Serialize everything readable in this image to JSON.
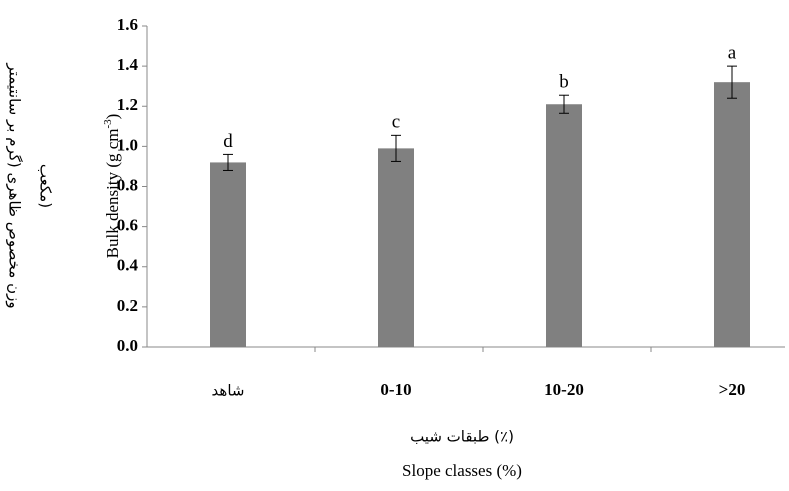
{
  "chart_data": {
    "type": "bar",
    "y_label": {
      "text": "Bulk density (g cm",
      "sup": "-3",
      "end": ")"
    },
    "y_label_fa": [
      "وزن مخصوص ظاهری (گرم بر سانتیمتر",
      "مکعب)"
    ],
    "x_label_fa": "طبقات شیب (٪)",
    "x_label": "Slope classes (%)",
    "categories": [
      "شاهد",
      "0-10",
      "10-20",
      ">20"
    ],
    "values": [
      0.92,
      0.99,
      1.21,
      1.32
    ],
    "errors": [
      0.04,
      0.065,
      0.045,
      0.08
    ],
    "annotations": [
      "d",
      "c",
      "b",
      "a"
    ],
    "color": "#808080",
    "ylim": [
      0,
      1.6
    ],
    "yticks": [
      {
        "value": 0,
        "label": "0.0"
      },
      0.2,
      0.4,
      0.6,
      0.8,
      {
        "value": 1,
        "label": "1.0"
      },
      1.2,
      1.4,
      1.6
    ]
  }
}
